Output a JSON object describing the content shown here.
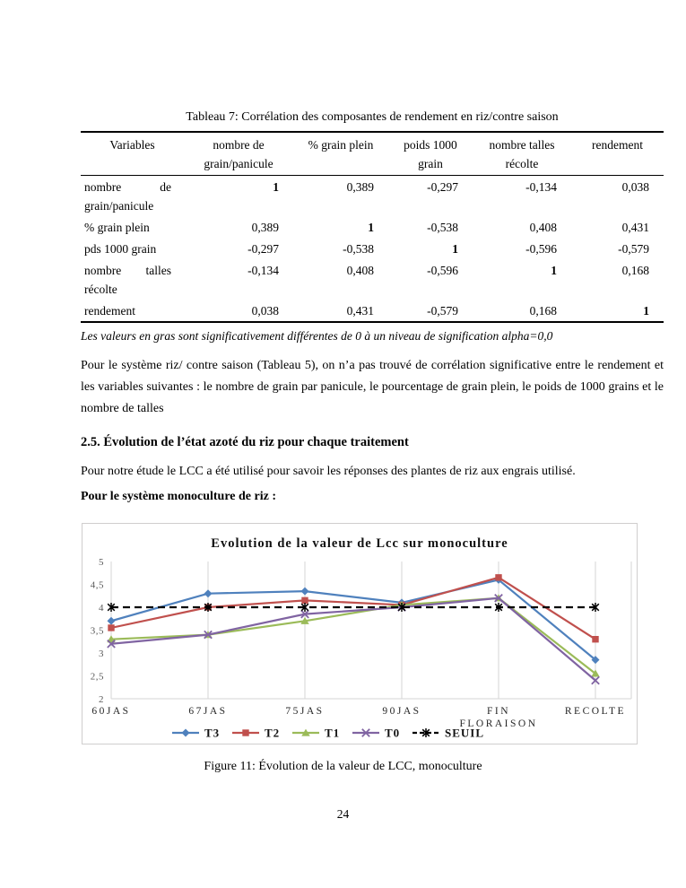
{
  "table": {
    "title": "Tableau 7: Corrélation des composantes de rendement en riz/contre saison",
    "headers": [
      "Variables",
      "nombre de grain/panicule",
      "% grain plein",
      "poids 1000 grain",
      "nombre talles récolte",
      "rendement"
    ],
    "rows": [
      {
        "label": "nombre de grain/panicule",
        "values": [
          "1",
          "0,389",
          "-0,297",
          "-0,134",
          "0,038"
        ],
        "bold_index": 0
      },
      {
        "label": "% grain plein",
        "values": [
          "0,389",
          "1",
          "-0,538",
          "0,408",
          "0,431"
        ],
        "bold_index": 1
      },
      {
        "label": "pds 1000 grain",
        "values": [
          "-0,297",
          "-0,538",
          "1",
          "-0,596",
          "-0,579"
        ],
        "bold_index": 2
      },
      {
        "label": "nombre talles récolte",
        "values": [
          "-0,134",
          "0,408",
          "-0,596",
          "1",
          "0,168"
        ],
        "bold_index": 3
      },
      {
        "label": "rendement",
        "values": [
          "0,038",
          "0,431",
          "-0,579",
          "0,168",
          "1"
        ],
        "bold_index": 4
      }
    ],
    "note": "Les valeurs en gras sont significativement différentes de 0 à un niveau de signification alpha=0,0"
  },
  "paragraphs": {
    "p1": "Pour le système  riz/ contre saison (Tableau 5), on n’a pas trouvé de corrélation significative entre le rendement et les variables suivantes : le nombre de grain par panicule, le pourcentage de grain plein, le poids de 1000 grains et le nombre de talles",
    "heading": "2.5. Évolution de l’état  azoté du riz pour chaque traitement",
    "p2": "Pour notre étude le LCC a été utilisé pour savoir les réponses des plantes de riz  aux engrais utilisé.",
    "subheading": "Pour le système monoculture de riz :"
  },
  "chart_data": {
    "type": "line",
    "title": "Evolution de la valeur de Lcc sur monoculture",
    "categories": [
      "60JAS",
      "67JAS",
      "75JAS",
      "90JAS",
      "FIN FLORAISON",
      "RECOLTE"
    ],
    "series": [
      {
        "name": "T3",
        "color": "#4F81BD",
        "marker": "diamond",
        "dashed": false,
        "values": [
          3.7,
          4.3,
          4.35,
          4.1,
          4.6,
          2.85
        ]
      },
      {
        "name": "T2",
        "color": "#C0504D",
        "marker": "square",
        "dashed": false,
        "values": [
          3.55,
          4.0,
          4.15,
          4.05,
          4.65,
          3.3
        ]
      },
      {
        "name": "T1",
        "color": "#9BBB59",
        "marker": "triangle",
        "dashed": false,
        "values": [
          3.3,
          3.4,
          3.7,
          4.05,
          4.2,
          2.55
        ]
      },
      {
        "name": "T0",
        "color": "#8064A2",
        "marker": "x",
        "dashed": false,
        "values": [
          3.2,
          3.4,
          3.85,
          4.0,
          4.2,
          2.4
        ]
      },
      {
        "name": "SEUIL",
        "color": "#000000",
        "marker": "asterisk",
        "dashed": true,
        "values": [
          4,
          4,
          4,
          4,
          4,
          4
        ]
      }
    ],
    "xlabel": "",
    "ylabel": "",
    "ylim": [
      2,
      5
    ],
    "ytick_step": 0.5,
    "ytick_labels": [
      "2",
      "2,5",
      "3",
      "3,5",
      "4",
      "4,5",
      "5"
    ],
    "grid": "vertical",
    "legend_position": "bottom"
  },
  "figure_caption": "Figure 11: Évolution de la valeur de LCC, monoculture",
  "page_number": "24"
}
